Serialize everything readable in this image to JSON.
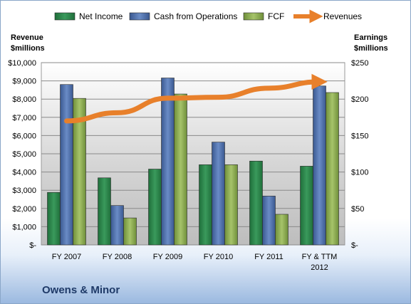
{
  "chart_data": {
    "type": "bar",
    "company": "Owens & Minor",
    "categories": [
      "FY 2007",
      "FY 2008",
      "FY 2009",
      "FY 2010",
      "FY 2011",
      "FY & TTM 2012"
    ],
    "series": [
      {
        "name": "Net Income",
        "axis": "right",
        "type": "bar",
        "color": "#2e8a4e",
        "values": [
          72,
          92,
          104,
          110,
          115,
          108
        ]
      },
      {
        "name": "Cash from Operations",
        "axis": "right",
        "type": "bar",
        "color": "#4f6fae",
        "values": [
          220,
          54,
          229,
          141,
          67,
          218
        ]
      },
      {
        "name": "FCF",
        "axis": "right",
        "type": "bar",
        "color": "#8cac4f",
        "values": [
          201,
          37,
          207,
          110,
          42,
          209
        ]
      },
      {
        "name": "Revenues",
        "axis": "left",
        "type": "line",
        "color": "#e8802b",
        "values": [
          6800,
          7250,
          8050,
          8100,
          8600,
          8950
        ]
      }
    ],
    "left_axis": {
      "title": [
        "Revenue",
        "$millions"
      ],
      "ylim": [
        0,
        10000
      ],
      "ticks": [
        "$-",
        "$1,000",
        "$2,000",
        "$3,000",
        "$4,000",
        "$5,000",
        "$6,000",
        "$7,000",
        "$8,000",
        "$9,000",
        "$10,000"
      ]
    },
    "right_axis": {
      "title": [
        "Earnings",
        "$millions"
      ],
      "ylim": [
        0,
        250
      ],
      "ticks": [
        "$-",
        "$50",
        "$100",
        "$150",
        "$200",
        "$250"
      ]
    },
    "grid": true,
    "legend_position": "top"
  }
}
